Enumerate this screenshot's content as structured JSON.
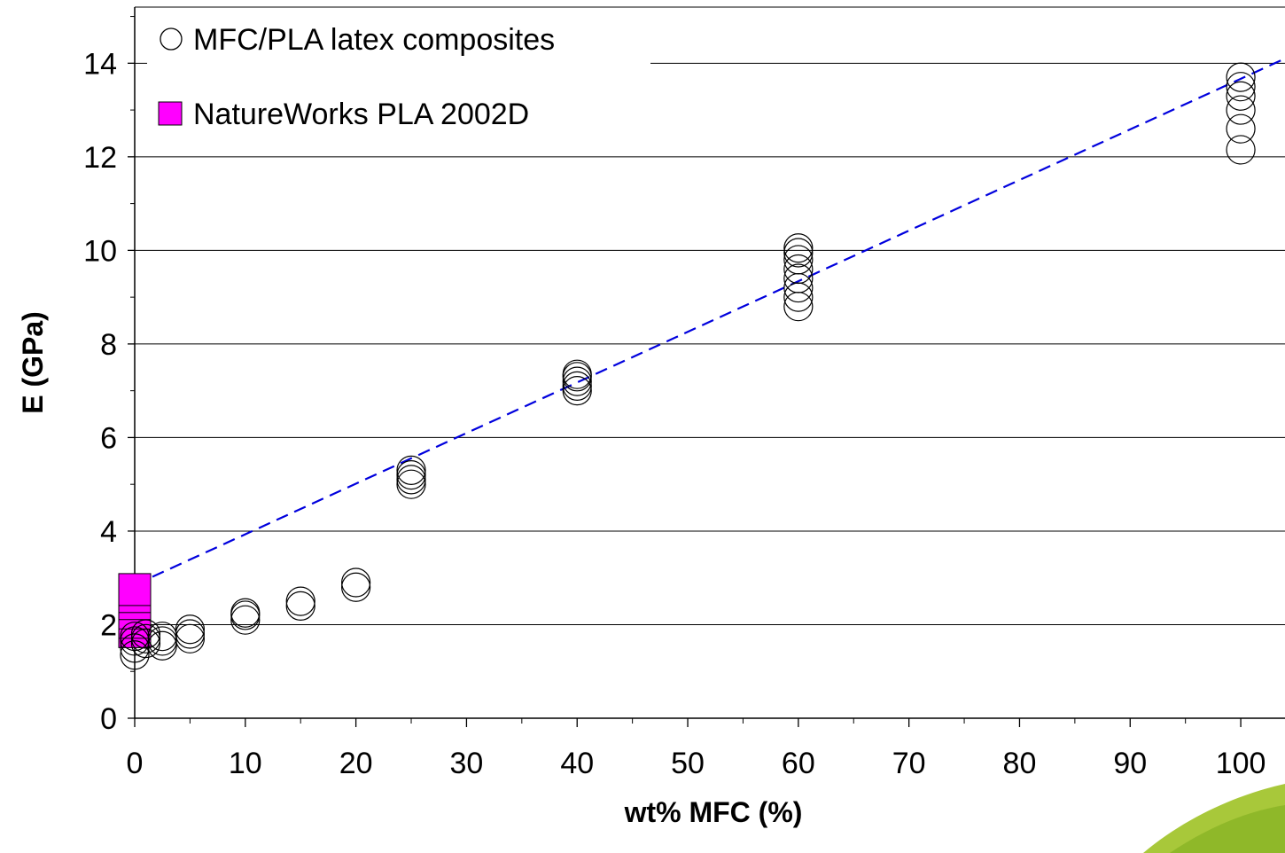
{
  "chart_data": {
    "type": "scatter",
    "title": "",
    "xlabel": "wt% MFC (%)",
    "ylabel": "E (GPa)",
    "xlim": [
      0,
      104
    ],
    "ylim": [
      0,
      15.2
    ],
    "x_ticks": [
      0,
      10,
      20,
      30,
      40,
      50,
      60,
      70,
      80,
      90,
      100
    ],
    "y_ticks": [
      0,
      2,
      4,
      6,
      8,
      10,
      12,
      14
    ],
    "grid": "horizontal",
    "legend_position": "top-left",
    "series": [
      {
        "name": "MFC/PLA latex composites",
        "marker": "open-circle",
        "color": "#000000",
        "points": [
          [
            0,
            1.35
          ],
          [
            0,
            1.5
          ],
          [
            0,
            1.65
          ],
          [
            0,
            1.75
          ],
          [
            1,
            1.6
          ],
          [
            1,
            1.7
          ],
          [
            1,
            1.8
          ],
          [
            2.5,
            1.55
          ],
          [
            2.5,
            1.65
          ],
          [
            2.5,
            1.75
          ],
          [
            5,
            1.7
          ],
          [
            5,
            1.8
          ],
          [
            5,
            1.9
          ],
          [
            10,
            2.1
          ],
          [
            10,
            2.2
          ],
          [
            10,
            2.25
          ],
          [
            15,
            2.4
          ],
          [
            15,
            2.5
          ],
          [
            20,
            2.8
          ],
          [
            20,
            2.9
          ],
          [
            25,
            5.0
          ],
          [
            25,
            5.1
          ],
          [
            25,
            5.2
          ],
          [
            25,
            5.3
          ],
          [
            40,
            7.0
          ],
          [
            40,
            7.1
          ],
          [
            40,
            7.2
          ],
          [
            40,
            7.3
          ],
          [
            40,
            7.35
          ],
          [
            60,
            8.8
          ],
          [
            60,
            9.0
          ],
          [
            60,
            9.2
          ],
          [
            60,
            9.4
          ],
          [
            60,
            9.6
          ],
          [
            60,
            9.8
          ],
          [
            60,
            9.95
          ],
          [
            60,
            10.05
          ],
          [
            100,
            12.15
          ],
          [
            100,
            12.6
          ],
          [
            100,
            13.0
          ],
          [
            100,
            13.3
          ],
          [
            100,
            13.5
          ],
          [
            100,
            13.7
          ]
        ]
      },
      {
        "name": "NatureWorks PLA 2002D",
        "marker": "filled-square",
        "color": "#ff00ff",
        "points": [
          [
            0,
            1.85
          ],
          [
            0,
            2.05
          ],
          [
            0,
            2.25
          ],
          [
            0,
            2.45
          ],
          [
            0,
            2.6
          ],
          [
            0,
            2.75
          ]
        ]
      }
    ],
    "trendline": {
      "style": "dashed",
      "color": "#0000dd",
      "points": [
        [
          0,
          2.85
        ],
        [
          104,
          14.1
        ]
      ]
    }
  }
}
